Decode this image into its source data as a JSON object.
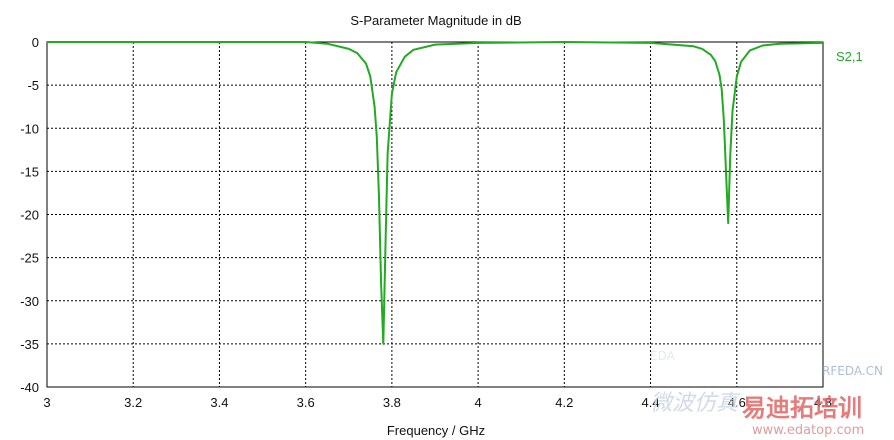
{
  "chart_data": {
    "type": "line",
    "title": "S-Parameter Magnitude in dB",
    "xlabel": "Frequency / GHz",
    "ylabel": "",
    "xlim": [
      3.0,
      4.8
    ],
    "ylim": [
      -40,
      0
    ],
    "xticks": [
      3.0,
      3.2,
      3.4,
      3.6,
      3.8,
      4.0,
      4.2,
      4.4,
      4.6,
      4.8
    ],
    "xtick_labels": [
      "3",
      "3.2",
      "3.4",
      "3.6",
      "3.8",
      "4",
      "4.2",
      "4.4",
      "4.6",
      "4.8"
    ],
    "yticks": [
      0,
      -5,
      -10,
      -15,
      -20,
      -25,
      -30,
      -35,
      -40
    ],
    "ytick_labels": [
      "0",
      "-5",
      "-10",
      "-15",
      "-20",
      "-25",
      "-30",
      "-35",
      "-40"
    ],
    "grid": true,
    "legend_position": "right",
    "series": [
      {
        "name": "S2,1",
        "color": "#22aa22",
        "x": [
          3.0,
          3.5,
          3.6,
          3.65,
          3.7,
          3.72,
          3.74,
          3.75,
          3.76,
          3.765,
          3.77,
          3.775,
          3.78,
          3.785,
          3.79,
          3.8,
          3.81,
          3.83,
          3.85,
          3.9,
          4.0,
          4.2,
          4.4,
          4.5,
          4.52,
          4.54,
          4.55,
          4.56,
          4.565,
          4.57,
          4.575,
          4.58,
          4.585,
          4.59,
          4.6,
          4.61,
          4.63,
          4.66,
          4.7,
          4.8
        ],
        "y": [
          0,
          0,
          0,
          -0.2,
          -0.8,
          -1.3,
          -2.5,
          -4,
          -7.5,
          -11,
          -18,
          -28,
          -35,
          -24,
          -13,
          -6,
          -3.5,
          -1.7,
          -0.9,
          -0.3,
          -0.1,
          0,
          -0.1,
          -0.5,
          -0.8,
          -1.5,
          -2.2,
          -3.8,
          -5.5,
          -9,
          -15,
          -21,
          -13,
          -8,
          -4,
          -2.3,
          -1,
          -0.4,
          -0.2,
          -0.1
        ]
      }
    ]
  },
  "watermark": {
    "line1": "EDA",
    "line2": "微波仿真",
    "line3": "易迪拓培训",
    "line4": "RFEDA.CN",
    "url": "www.edatop.com",
    "color": "#c8d4e6",
    "accent_color": "#e06666"
  }
}
